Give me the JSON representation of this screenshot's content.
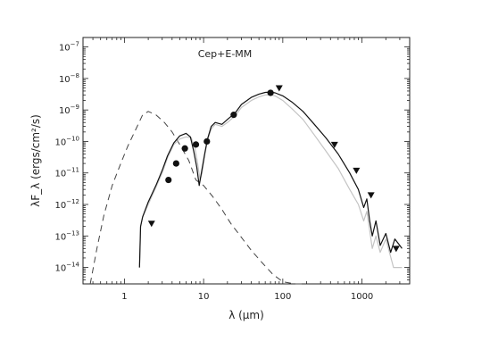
{
  "chart_data": {
    "type": "line",
    "title": "Cep+E-MM",
    "xlabel": "λ (μm)",
    "ylabel": "λF_λ (ergs/cm²/s)",
    "xscale": "log",
    "yscale": "log",
    "xlim": [
      0.3,
      4000
    ],
    "ylim": [
      3e-15,
      2e-07
    ],
    "xticks": [
      {
        "v": 1,
        "label": "1"
      },
      {
        "v": 10,
        "label": "10"
      },
      {
        "v": 100,
        "label": "100"
      },
      {
        "v": 1000,
        "label": "1000"
      }
    ],
    "yticks": [
      {
        "v": 1e-14,
        "base": "10",
        "exp": "−14"
      },
      {
        "v": 1e-13,
        "base": "10",
        "exp": "−13"
      },
      {
        "v": 1e-12,
        "base": "10",
        "exp": "−12"
      },
      {
        "v": 1e-11,
        "base": "10",
        "exp": "−11"
      },
      {
        "v": 1e-10,
        "base": "10",
        "exp": "−10"
      },
      {
        "v": 1e-09,
        "base": "10",
        "exp": "−9"
      },
      {
        "v": 1e-08,
        "base": "10",
        "exp": "−8"
      },
      {
        "v": 1e-07,
        "base": "10",
        "exp": "−7"
      }
    ],
    "series": [
      {
        "style": "dashed",
        "color": "#444444",
        "x": [
          0.37,
          0.45,
          0.55,
          0.7,
          0.9,
          1.1,
          1.4,
          1.7,
          2.0,
          2.5,
          3.2,
          4,
          5,
          6.5,
          8,
          10,
          13,
          17,
          22,
          30,
          40,
          55,
          75,
          100,
          140,
          175
        ],
        "y": [
          3e-15,
          4e-14,
          4.5e-13,
          4e-12,
          2e-11,
          7e-11,
          2.5e-10,
          7e-10,
          9e-10,
          7e-10,
          4e-10,
          2e-10,
          8e-11,
          2.5e-11,
          6e-12,
          4e-12,
          1.8e-12,
          7e-13,
          2.5e-13,
          9e-14,
          3.5e-14,
          1.4e-14,
          6e-15,
          3.5e-15,
          2e-15,
          1.5e-15
        ]
      },
      {
        "style": "solid",
        "color": "#c4c4c4",
        "x": [
          1.55,
          1.6,
          1.7,
          2.0,
          2.5,
          3.0,
          3.5,
          4.2,
          5.0,
          6.0,
          7.0,
          7.8,
          8.4,
          9.0,
          9.6,
          10.3,
          11.2,
          12.5,
          14,
          17,
          20,
          25,
          30,
          40,
          50,
          60,
          70,
          80,
          100,
          130,
          180,
          250,
          350,
          500,
          700,
          900,
          1050,
          1150,
          1250,
          1350,
          1500,
          1700,
          2000,
          2500,
          3200
        ],
        "y": [
          1e-14,
          2e-13,
          4e-13,
          1e-12,
          3.5e-12,
          1e-11,
          3e-11,
          8e-11,
          1.2e-10,
          1.4e-10,
          1.3e-10,
          6e-11,
          2e-11,
          6e-12,
          1e-11,
          3.5e-11,
          1.1e-10,
          2.5e-10,
          3.5e-10,
          3e-10,
          4e-10,
          6.5e-10,
          1.2e-09,
          2e-09,
          2.6e-09,
          3e-09,
          3e-09,
          2.8e-09,
          2e-09,
          1.1e-09,
          5e-10,
          1.6e-10,
          5e-11,
          1.4e-11,
          3e-12,
          1e-12,
          3e-13,
          6e-13,
          1.5e-13,
          4e-14,
          1e-13,
          3e-14,
          8e-14,
          1e-14,
          1e-14
        ]
      },
      {
        "style": "solid",
        "color": "#111111",
        "x": [
          1.55,
          1.6,
          1.7,
          2.0,
          2.5,
          3.0,
          3.5,
          4.2,
          5.0,
          6.0,
          6.8,
          7.5,
          8.2,
          8.8,
          9.5,
          10.3,
          11.2,
          12.5,
          14,
          17,
          20,
          25,
          30,
          40,
          50,
          60,
          70,
          80,
          100,
          130,
          180,
          250,
          350,
          500,
          700,
          900,
          1050,
          1150,
          1250,
          1350,
          1500,
          1700,
          2000,
          2300,
          2600,
          3000,
          3200
        ],
        "y": [
          1e-14,
          2e-13,
          4e-13,
          1.2e-12,
          4e-12,
          1.2e-11,
          3.5e-11,
          9e-11,
          1.5e-10,
          1.8e-10,
          1.4e-10,
          5e-11,
          1.5e-11,
          4e-12,
          1.2e-11,
          4e-11,
          1.2e-10,
          3e-10,
          4e-10,
          3.5e-10,
          5e-10,
          8e-10,
          1.5e-09,
          2.5e-09,
          3.2e-09,
          3.6e-09,
          3.7e-09,
          3.5e-09,
          2.8e-09,
          1.8e-09,
          9e-10,
          3.5e-10,
          1.3e-10,
          4e-11,
          1e-11,
          3e-12,
          8e-13,
          1.5e-12,
          3e-13,
          1e-13,
          3e-13,
          5e-14,
          1.2e-13,
          3e-14,
          8e-14,
          5e-14,
          4e-14
        ]
      }
    ],
    "detections": {
      "marker": "filled-circle",
      "x": [
        3.6,
        4.5,
        5.8,
        8.0,
        11,
        24,
        70
      ],
      "y": [
        6e-12,
        2e-11,
        6e-11,
        8e-11,
        1e-10,
        7e-10,
        3.5e-09
      ]
    },
    "upper_limits": {
      "marker": "filled-triangle-down",
      "x": [
        2.2,
        90,
        450,
        850,
        1300,
        2700
      ],
      "y": [
        2.5e-13,
        5e-09,
        8e-11,
        1.2e-11,
        2e-12,
        4e-14
      ]
    }
  }
}
